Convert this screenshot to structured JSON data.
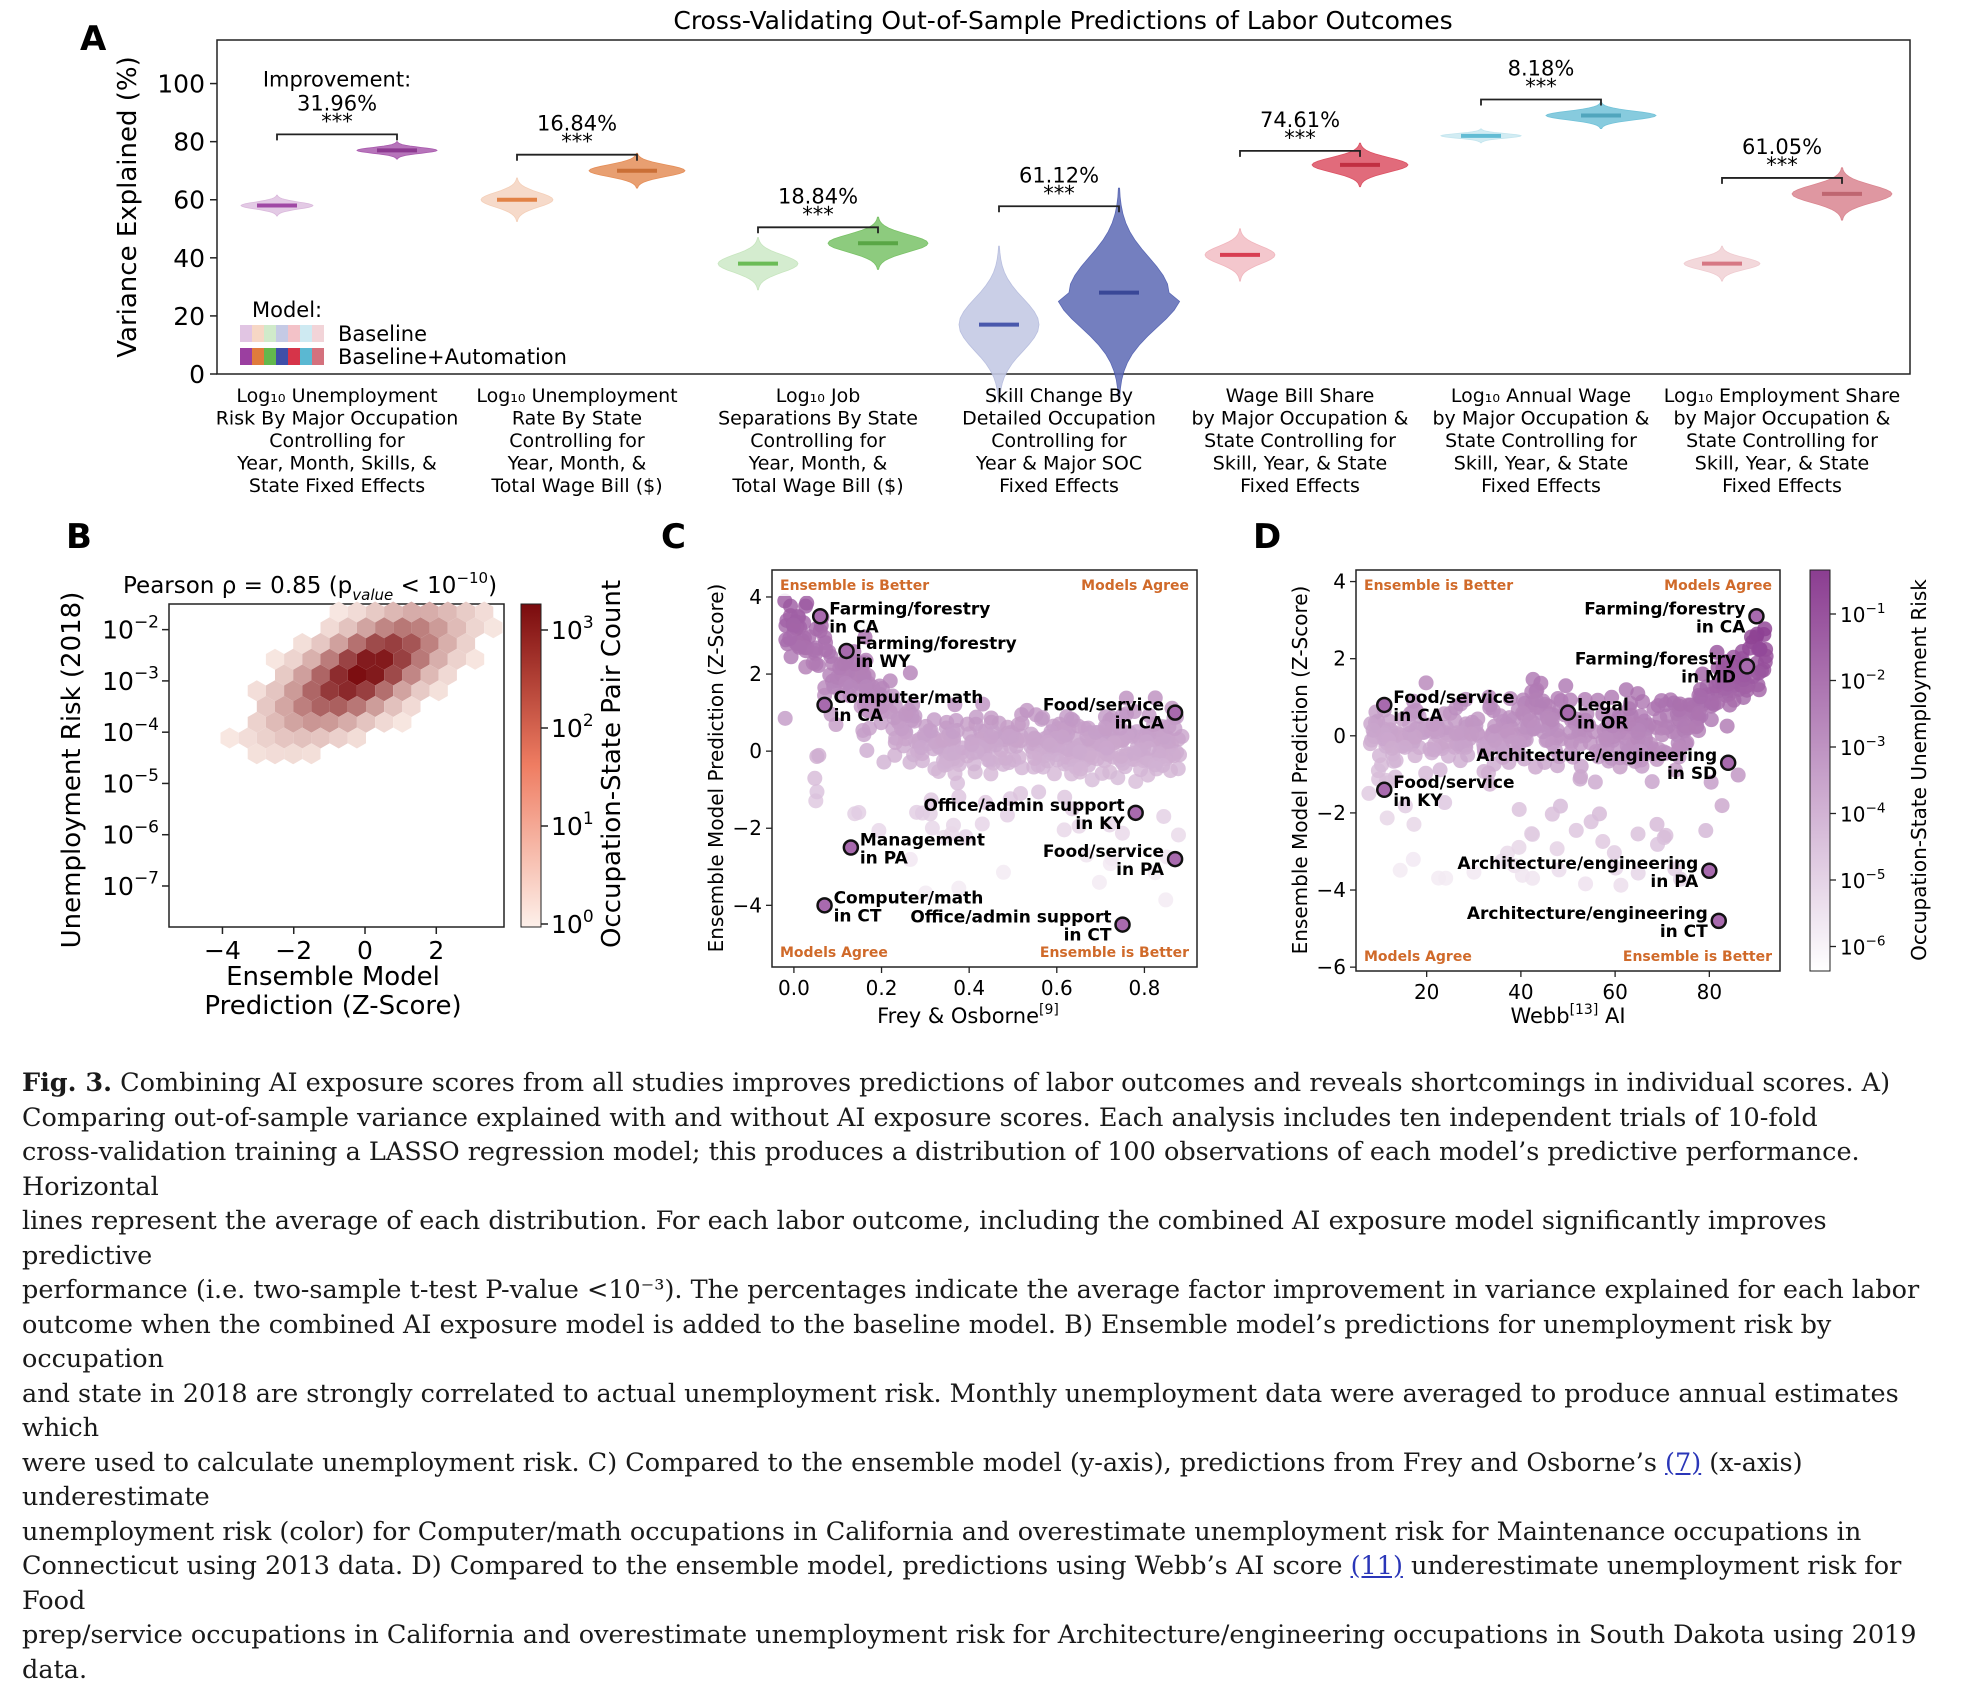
{
  "figure_title": "Cross-Validating Out-of-Sample Predictions of Labor Outcomes",
  "panel_labels": [
    "A",
    "B",
    "C",
    "D"
  ],
  "colors": {
    "panelA": [
      "#9b3fa0",
      "#e07b3c",
      "#63b84d",
      "#3f4fa8",
      "#d63449",
      "#5ab8d2",
      "#d4717d"
    ],
    "hex_cmap_low": "#fdf0ea",
    "hex_cmap_high": "#7a0b0e",
    "scatter_low": "#f3eaf3",
    "scatter_high": "#8b3d91",
    "corner_text": "#d06a2a"
  },
  "chart_data": [
    {
      "type": "violin",
      "title": "Cross-Validating Out-of-Sample Predictions of Labor Outcomes",
      "ylabel": "Variance Explained (%)",
      "ylim": [
        0,
        115
      ],
      "yticks": [
        "0",
        "20",
        "40",
        "60",
        "80",
        "100"
      ],
      "legend": {
        "title": "Model:",
        "entries": [
          "Baseline",
          "Baseline+Automation"
        ]
      },
      "groups": [
        {
          "label": [
            "Log₁₀ Unemployment",
            "Risk By Major Occupation",
            "Controlling for",
            "Year, Month, Skills, &",
            "State Fixed Effects"
          ],
          "baseline_mean": 58,
          "automation_mean": 77,
          "improvement": "31.96%",
          "improvement_prefix": "Improvement:",
          "significance": "***"
        },
        {
          "label": [
            "Log₁₀ Unemployment",
            "Rate By State",
            "Controlling for",
            "Year, Month, &",
            "Total Wage Bill ($)"
          ],
          "baseline_mean": 60,
          "automation_mean": 70,
          "improvement": "16.84%",
          "significance": "***"
        },
        {
          "label": [
            "Log₁₀ Job",
            "Separations By State",
            "Controlling for",
            "Year, Month, &",
            "Total Wage Bill ($)"
          ],
          "baseline_mean": 38,
          "automation_mean": 45,
          "improvement": "18.84%",
          "significance": "***"
        },
        {
          "label": [
            "Skill Change By",
            "Detailed Occupation",
            "Controlling for",
            "Year & Major SOC",
            "Fixed Effects"
          ],
          "baseline_mean": 17,
          "automation_mean": 28,
          "improvement": "61.12%",
          "significance": "***"
        },
        {
          "label": [
            "Wage Bill Share",
            "by Major Occupation &",
            "State Controlling for",
            "Skill, Year, & State",
            "Fixed Effects"
          ],
          "baseline_mean": 41,
          "automation_mean": 72,
          "improvement": "74.61%",
          "significance": "***"
        },
        {
          "label": [
            "Log₁₀ Annual Wage",
            "by Major Occupation &",
            "State Controlling for",
            "Skill, Year, & State",
            "Fixed Effects"
          ],
          "baseline_mean": 82,
          "automation_mean": 89,
          "improvement": "8.18%",
          "significance": "***"
        },
        {
          "label": [
            "Log₁₀ Employment Share",
            "by Major Occupation &",
            "State Controlling for",
            "Skill, Year, & State",
            "Fixed Effects"
          ],
          "baseline_mean": 38,
          "automation_mean": 62,
          "improvement": "61.05%",
          "significance": "***"
        }
      ]
    },
    {
      "type": "hexbin",
      "title": "Pearson ρ = 0.85 (p",
      "title_sub": "value",
      "title_tail": " < 10",
      "title_exp": "−10",
      "title_close": ")",
      "xlabel": [
        "Ensemble Model",
        "Prediction (Z-Score)"
      ],
      "ylabel": "Unemployment Risk (2018)",
      "xticks": [
        "−4",
        "−2",
        "0",
        "2"
      ],
      "yticks_base": "10",
      "yticks_exp": [
        "−2",
        "−3",
        "−4",
        "−5",
        "−6",
        "−7"
      ],
      "colorbar_label": "Occupation-State Pair Count",
      "colorbar_ticks_exp": [
        "0",
        "1",
        "2",
        "3"
      ],
      "pearson_r": 0.85
    },
    {
      "type": "scatter",
      "xlabel": "Frey & Osborne",
      "xlabel_sup": "[9]",
      "ylabel": "Ensemble Model Prediction (Z-Score)",
      "xticks": [
        "0.0",
        "0.2",
        "0.4",
        "0.6",
        "0.8"
      ],
      "yticks": [
        "4",
        "2",
        "0",
        "−2",
        "−4"
      ],
      "corners": {
        "top_left": "Ensemble is Better",
        "top_right": "Models Agree",
        "bottom_left": "Models Agree",
        "bottom_right": "Ensemble is Better"
      },
      "annotations": [
        {
          "lines": [
            "Farming/forestry",
            "in CA"
          ],
          "x": 0.06,
          "y": 3.5
        },
        {
          "lines": [
            "Farming/forestry",
            "in WY"
          ],
          "x": 0.12,
          "y": 2.6
        },
        {
          "lines": [
            "Computer/math",
            "in CA"
          ],
          "x": 0.07,
          "y": 1.2
        },
        {
          "lines": [
            "Food/service",
            "in CA"
          ],
          "x": 0.87,
          "y": 1.0
        },
        {
          "lines": [
            "Office/admin support",
            "in KY"
          ],
          "x": 0.78,
          "y": -1.6
        },
        {
          "lines": [
            "Management",
            "in PA"
          ],
          "x": 0.13,
          "y": -2.5
        },
        {
          "lines": [
            "Food/service",
            "in PA"
          ],
          "x": 0.87,
          "y": -2.8
        },
        {
          "lines": [
            "Computer/math",
            "in CT"
          ],
          "x": 0.07,
          "y": -4.0
        },
        {
          "lines": [
            "Office/admin support",
            "in CT"
          ],
          "x": 0.75,
          "y": -4.5
        }
      ]
    },
    {
      "type": "scatter",
      "xlabel": "Webb",
      "xlabel_sup": "[13]",
      "xlabel_tail": " AI",
      "ylabel": "Ensemble Model Prediction (Z-Score)",
      "xticks": [
        "20",
        "40",
        "60",
        "80"
      ],
      "yticks": [
        "4",
        "2",
        "0",
        "−2",
        "−4",
        "−6"
      ],
      "colorbar_label": "Occupation-State Unemployment Risk",
      "colorbar_ticks_exp": [
        "−1",
        "−2",
        "−3",
        "−4",
        "−5",
        "−6"
      ],
      "corners": {
        "top_left": "Ensemble is Better",
        "top_right": "Models Agree",
        "bottom_left": "Models Agree",
        "bottom_right": "Ensemble is Better"
      },
      "annotations": [
        {
          "lines": [
            "Farming/forestry",
            "in CA"
          ],
          "x": 90,
          "y": 3.1
        },
        {
          "lines": [
            "Farming/forestry",
            "in MD"
          ],
          "x": 88,
          "y": 1.8
        },
        {
          "lines": [
            "Food/service",
            "in CA"
          ],
          "x": 11,
          "y": 0.8
        },
        {
          "lines": [
            "Legal",
            "in OR"
          ],
          "x": 50,
          "y": 0.6
        },
        {
          "lines": [
            "Architecture/engineering",
            "in SD"
          ],
          "x": 84,
          "y": -0.7
        },
        {
          "lines": [
            "Food/service",
            "in KY"
          ],
          "x": 11,
          "y": -1.4
        },
        {
          "lines": [
            "Architecture/engineering",
            "in PA"
          ],
          "x": 80,
          "y": -3.5
        },
        {
          "lines": [
            "Architecture/engineering",
            "in CT"
          ],
          "x": 82,
          "y": -4.8
        }
      ]
    }
  ],
  "caption": {
    "fig": "Fig. 3.",
    "lines": [
      " Combining AI exposure scores from all studies improves predictions of labor outcomes and reveals shortcomings in individual scores. A)",
      "Comparing out-of-sample variance explained with and without AI exposure scores. Each analysis includes ten independent trials of 10-fold",
      "cross-validation training a LASSO regression model; this produces a distribution of 100 observations of each model’s predictive performance. Horizontal",
      "lines represent the average of each distribution. For each labor outcome, including the combined AI exposure model significantly improves predictive",
      "performance (i.e. two-sample t-test P-value <10⁻³). The percentages indicate the average factor improvement in variance explained for each labor",
      "outcome when the combined AI exposure model is added to the baseline model. B) Ensemble model’s predictions for unemployment risk by occupation",
      "and state in 2018 are strongly correlated to actual unemployment risk. Monthly unemployment data were averaged to produce annual estimates which",
      "were used to calculate unemployment risk. C) Compared to the ensemble model (y-axis), predictions from Frey and Osborne’s ",
      "(7)",
      " (x-axis) underestimate",
      "unemployment risk (color) for Computer/math occupations in California and overestimate unemployment risk for Maintenance occupations in",
      "Connecticut using 2013 data. D) Compared to the ensemble model, predictions using Webb’s AI score ",
      "(11)",
      " underestimate unemployment risk for Food",
      "prep/service occupations in California and overestimate unemployment risk for Architecture/engineering occupations in South Dakota using 2019 data."
    ]
  }
}
